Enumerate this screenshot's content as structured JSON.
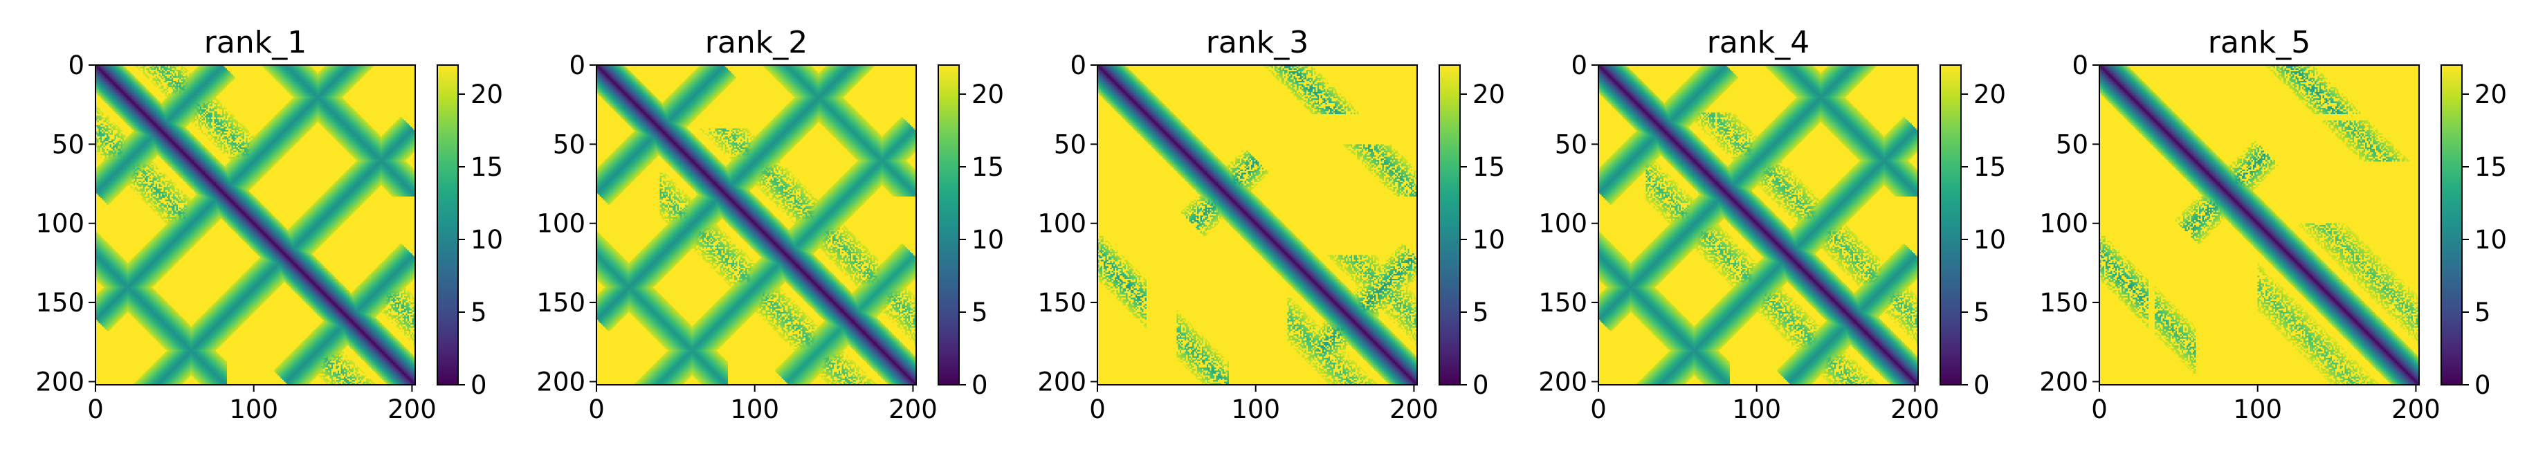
{
  "chart_data": [
    {
      "type": "heatmap",
      "title": "rank_1",
      "x_ticks": [
        0,
        100,
        200
      ],
      "y_ticks": [
        0,
        50,
        100,
        150,
        200
      ],
      "xlim": [
        0,
        202
      ],
      "ylim": [
        202,
        0
      ],
      "n": 202,
      "colorbar": {
        "min": 0,
        "max": 22,
        "ticks": [
          0,
          5,
          10,
          15,
          20
        ],
        "colormap": "viridis"
      },
      "features": {
        "main_diagonal": true,
        "stripes": [
          {
            "type": "anti",
            "sum": 160,
            "t_range": [
              0,
              200
            ],
            "strength": 0.85
          },
          {
            "type": "anti",
            "sum": 240,
            "t_range": [
              20,
              200
            ],
            "strength": 0.85
          },
          {
            "type": "anti",
            "sum": 80,
            "t_range": [
              0,
              80
            ],
            "strength": 0.85
          },
          {
            "type": "anti",
            "sum": 320,
            "t_range": [
              120,
              200
            ],
            "strength": 0.85
          },
          {
            "type": "par",
            "off": 120,
            "t_range": [
              0,
              82
            ],
            "strength": 0.85
          },
          {
            "type": "par",
            "off": -120,
            "t_range": [
              0,
              82
            ],
            "strength": 0.85
          },
          {
            "type": "par",
            "off": 40,
            "t_range": [
              0,
              60
            ],
            "strength": 0.6,
            "noisy": true
          },
          {
            "type": "par",
            "off": -40,
            "t_range": [
              0,
              60
            ],
            "strength": 0.6,
            "noisy": true
          },
          {
            "type": "par",
            "off": 40,
            "t_range": [
              140,
              200
            ],
            "strength": 0.6,
            "noisy": true
          },
          {
            "type": "par",
            "off": -40,
            "t_range": [
              140,
              200
            ],
            "strength": 0.6,
            "noisy": true
          }
        ]
      }
    },
    {
      "type": "heatmap",
      "title": "rank_2",
      "x_ticks": [
        0,
        100,
        200
      ],
      "y_ticks": [
        0,
        50,
        100,
        150,
        200
      ],
      "xlim": [
        0,
        202
      ],
      "ylim": [
        202,
        0
      ],
      "n": 202,
      "colorbar": {
        "min": 0,
        "max": 22,
        "ticks": [
          0,
          5,
          10,
          15,
          20
        ],
        "colormap": "viridis"
      },
      "features": {
        "main_diagonal": true,
        "stripes": [
          {
            "type": "anti",
            "sum": 160,
            "t_range": [
              0,
              200
            ],
            "strength": 0.85
          },
          {
            "type": "anti",
            "sum": 240,
            "t_range": [
              20,
              200
            ],
            "strength": 0.8
          },
          {
            "type": "anti",
            "sum": 80,
            "t_range": [
              0,
              80
            ],
            "strength": 0.85
          },
          {
            "type": "anti",
            "sum": 320,
            "t_range": [
              120,
              200
            ],
            "strength": 0.75
          },
          {
            "type": "par",
            "off": 120,
            "t_range": [
              0,
              82
            ],
            "strength": 0.8
          },
          {
            "type": "par",
            "off": -120,
            "t_range": [
              0,
              82
            ],
            "strength": 0.8
          },
          {
            "type": "par",
            "off": 40,
            "t_range": [
              40,
              200
            ],
            "strength": 0.55,
            "noisy": true
          },
          {
            "type": "par",
            "off": -40,
            "t_range": [
              40,
              200
            ],
            "strength": 0.55,
            "noisy": true
          }
        ]
      }
    },
    {
      "type": "heatmap",
      "title": "rank_3",
      "x_ticks": [
        0,
        100,
        200
      ],
      "y_ticks": [
        0,
        50,
        100,
        150,
        200
      ],
      "xlim": [
        0,
        202
      ],
      "ylim": [
        202,
        0
      ],
      "n": 202,
      "colorbar": {
        "min": 0,
        "max": 22,
        "ticks": [
          0,
          5,
          10,
          15,
          20
        ],
        "colormap": "viridis"
      },
      "features": {
        "main_diagonal": true,
        "stripes": [
          {
            "type": "anti",
            "sum": 160,
            "t_range": [
              60,
              100
            ],
            "strength": 0.75,
            "noisy": true
          },
          {
            "type": "anti",
            "sum": 320,
            "t_range": [
              140,
              200
            ],
            "strength": 0.75,
            "noisy": true
          },
          {
            "type": "par",
            "off": 120,
            "t_range": [
              0,
              30
            ],
            "strength": 0.75,
            "noisy": true
          },
          {
            "type": "par",
            "off": -120,
            "t_range": [
              0,
              30
            ],
            "strength": 0.75,
            "noisy": true
          },
          {
            "type": "par",
            "off": 120,
            "t_range": [
              50,
              82
            ],
            "strength": 0.65,
            "noisy": true
          },
          {
            "type": "par",
            "off": -120,
            "t_range": [
              50,
              82
            ],
            "strength": 0.65,
            "noisy": true
          },
          {
            "type": "par",
            "off": 40,
            "t_range": [
              120,
              200
            ],
            "strength": 0.55,
            "noisy": true
          },
          {
            "type": "par",
            "off": -40,
            "t_range": [
              120,
              200
            ],
            "strength": 0.55,
            "noisy": true
          }
        ]
      }
    },
    {
      "type": "heatmap",
      "title": "rank_4",
      "x_ticks": [
        0,
        100,
        200
      ],
      "y_ticks": [
        0,
        50,
        100,
        150,
        200
      ],
      "xlim": [
        0,
        202
      ],
      "ylim": [
        202,
        0
      ],
      "n": 202,
      "colorbar": {
        "min": 0,
        "max": 22,
        "ticks": [
          0,
          5,
          10,
          15,
          20
        ],
        "colormap": "viridis"
      },
      "features": {
        "main_diagonal": true,
        "stripes": [
          {
            "type": "anti",
            "sum": 160,
            "t_range": [
              0,
              200
            ],
            "strength": 0.85
          },
          {
            "type": "anti",
            "sum": 240,
            "t_range": [
              20,
              200
            ],
            "strength": 0.85
          },
          {
            "type": "anti",
            "sum": 80,
            "t_range": [
              0,
              80
            ],
            "strength": 0.85
          },
          {
            "type": "anti",
            "sum": 320,
            "t_range": [
              120,
              200
            ],
            "strength": 0.85
          },
          {
            "type": "par",
            "off": 120,
            "t_range": [
              0,
              82
            ],
            "strength": 0.85
          },
          {
            "type": "par",
            "off": -120,
            "t_range": [
              0,
              82
            ],
            "strength": 0.85
          },
          {
            "type": "par",
            "off": 40,
            "t_range": [
              30,
              200
            ],
            "strength": 0.55,
            "noisy": true
          },
          {
            "type": "par",
            "off": -40,
            "t_range": [
              30,
              200
            ],
            "strength": 0.55,
            "noisy": true
          }
        ]
      }
    },
    {
      "type": "heatmap",
      "title": "rank_5",
      "x_ticks": [
        0,
        100,
        200
      ],
      "y_ticks": [
        0,
        50,
        100,
        150,
        200
      ],
      "xlim": [
        0,
        202
      ],
      "ylim": [
        202,
        0
      ],
      "n": 202,
      "colorbar": {
        "min": 0,
        "max": 22,
        "ticks": [
          0,
          5,
          10,
          15,
          20
        ],
        "colormap": "viridis"
      },
      "features": {
        "main_diagonal": true,
        "stripes": [
          {
            "type": "anti",
            "sum": 160,
            "t_range": [
              55,
              105
            ],
            "strength": 0.75,
            "noisy": true
          },
          {
            "type": "par",
            "off": 120,
            "t_range": [
              0,
              30
            ],
            "strength": 0.75,
            "noisy": true
          },
          {
            "type": "par",
            "off": -120,
            "t_range": [
              0,
              30
            ],
            "strength": 0.75,
            "noisy": true
          },
          {
            "type": "par",
            "off": 120,
            "t_range": [
              35,
              60
            ],
            "strength": 0.6,
            "noisy": true
          },
          {
            "type": "par",
            "off": -120,
            "t_range": [
              35,
              60
            ],
            "strength": 0.6,
            "noisy": true
          },
          {
            "type": "par",
            "off": 40,
            "t_range": [
              100,
              200
            ],
            "strength": 0.5,
            "noisy": true
          },
          {
            "type": "par",
            "off": -40,
            "t_range": [
              100,
              200
            ],
            "strength": 0.5,
            "noisy": true
          }
        ]
      }
    }
  ]
}
